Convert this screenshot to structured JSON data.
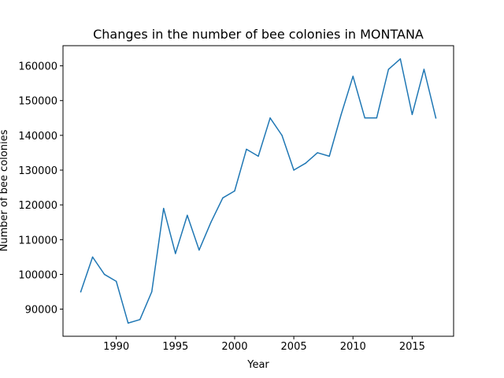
{
  "chart_data": {
    "type": "line",
    "title": "Changes in the number of bee colonies in MONTANA",
    "xlabel": "Year",
    "ylabel": "Number of bee colonies",
    "xlim": [
      1985.5,
      2018.5
    ],
    "ylim": [
      82200,
      165800
    ],
    "xticks": [
      1990,
      1995,
      2000,
      2005,
      2010,
      2015
    ],
    "yticks": [
      90000,
      100000,
      110000,
      120000,
      130000,
      140000,
      150000,
      160000
    ],
    "grid": false,
    "line_color": "#1f77b4",
    "series": [
      {
        "x": [
          1987,
          1988,
          1989,
          1990,
          1991,
          1992,
          1993,
          1994,
          1995,
          1996,
          1997,
          1998,
          1999,
          2000,
          2001,
          2002,
          2003,
          2004,
          2005,
          2006,
          2007,
          2008,
          2009,
          2010,
          2011,
          2012,
          2013,
          2014,
          2015,
          2016,
          2017
        ],
        "values": [
          95000,
          105000,
          100000,
          98000,
          86000,
          87000,
          95000,
          119000,
          106000,
          117000,
          107000,
          115000,
          122000,
          124000,
          136000,
          134000,
          145000,
          140000,
          130000,
          132000,
          135000,
          134000,
          146000,
          157000,
          145000,
          145000,
          159000,
          162000,
          146000,
          159000,
          145000
        ]
      }
    ]
  }
}
